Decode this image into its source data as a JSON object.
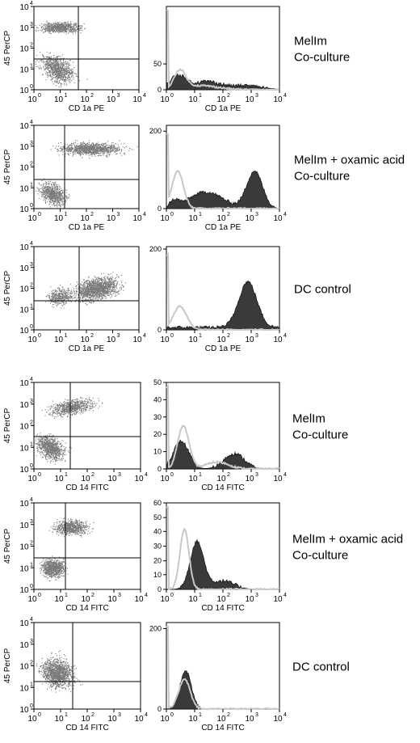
{
  "rows": [
    {
      "scatter": {
        "xlabel": "CD 1a PE",
        "ylabel": "45 PerCP",
        "x_ticks": [
          "10",
          "10",
          "10",
          "10",
          "10"
        ],
        "x_exp": [
          "0",
          "1",
          "2",
          "3",
          "4"
        ],
        "y_ticks": [
          "10",
          "10",
          "10",
          "10",
          "10"
        ],
        "y_exp": [
          "0",
          "1",
          "2",
          "3",
          "4"
        ]
      },
      "histogram": {
        "xlabel": "CD 1a PE",
        "y_ticks": [
          "0",
          "50"
        ],
        "y_top": "",
        "x_exp": [
          "0",
          "1",
          "2",
          "3",
          "4"
        ]
      },
      "label_lines": [
        "MelIm",
        "Co-culture"
      ]
    },
    {
      "scatter": {
        "xlabel": "CD 1a PE",
        "ylabel": "45 PerCP",
        "x_exp": [
          "0",
          "1",
          "2",
          "3",
          "4"
        ],
        "y_exp": [
          "0",
          "1",
          "2",
          "3",
          "4"
        ]
      },
      "histogram": {
        "xlabel": "CD 1a PE",
        "y_ticks": [
          "0",
          "200"
        ],
        "x_exp": [
          "0",
          "1",
          "2",
          "3",
          "4"
        ]
      },
      "label_lines": [
        "MelIm + oxamic acid",
        "Co-culture"
      ]
    },
    {
      "scatter": {
        "xlabel": "CD 1a PE",
        "ylabel": "45 PerCP",
        "x_exp": [
          "0",
          "1",
          "2",
          "3",
          "4"
        ],
        "y_exp": [
          "0",
          "1",
          "2",
          "3",
          "4"
        ]
      },
      "histogram": {
        "xlabel": "CD 1a PE",
        "y_ticks": [
          "0",
          "200"
        ],
        "x_exp": [
          "0",
          "1",
          "2",
          "3",
          "4"
        ]
      },
      "label_lines": [
        "DC control"
      ]
    },
    {
      "scatter": {
        "xlabel": "CD 14 FITC",
        "ylabel": "45 PerCP",
        "x_exp": [
          "0",
          "1",
          "2",
          "3",
          "4"
        ],
        "y_exp": [
          "0",
          "1",
          "2",
          "3",
          "4"
        ]
      },
      "histogram": {
        "xlabel": "CD 14 FITC",
        "y_ticks": [
          "0",
          "10",
          "20",
          "30",
          "40",
          "50"
        ],
        "x_exp": [
          "0",
          "1",
          "2",
          "3",
          "4"
        ]
      },
      "label_lines": [
        "MelIm",
        "Co-culture"
      ]
    },
    {
      "scatter": {
        "xlabel": "CD 14 FITC",
        "ylabel": "45 PerCP",
        "x_exp": [
          "0",
          "1",
          "2",
          "3",
          "4"
        ],
        "y_exp": [
          "0",
          "1",
          "2",
          "3",
          "4"
        ]
      },
      "histogram": {
        "xlabel": "CD 14 FITC",
        "y_ticks": [
          "0",
          "10",
          "20",
          "30",
          "40",
          "50",
          "60"
        ],
        "x_exp": [
          "0",
          "1",
          "2",
          "3",
          "4"
        ]
      },
      "label_lines": [
        "MelIm + oxamic acid",
        "Co-culture"
      ]
    },
    {
      "scatter": {
        "xlabel": "CD 14 FITC",
        "ylabel": "45 PerCP",
        "x_exp": [
          "0",
          "1",
          "2",
          "3",
          "4"
        ],
        "y_exp": [
          "0",
          "1",
          "2",
          "3",
          "4"
        ]
      },
      "histogram": {
        "xlabel": "CD 14 FITC",
        "y_ticks": [
          "0",
          "200"
        ],
        "x_exp": [
          "0",
          "1",
          "2",
          "3",
          "4"
        ]
      },
      "label_lines": [
        "DC control"
      ]
    }
  ],
  "colors": {
    "scatter_dots": "#7a7a7a",
    "control_line": "#c8c8c8",
    "sample_fill": "#3a3a3a",
    "frame": "#000000"
  }
}
